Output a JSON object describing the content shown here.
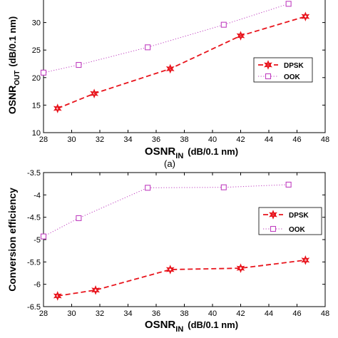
{
  "chart_data": [
    {
      "type": "line",
      "panel_caption": "(a)",
      "xlabel_main": "OSNR",
      "xlabel_sub": "IN",
      "xlabel_units": "(dB/0.1 nm)",
      "ylabel_main": "OSNR",
      "ylabel_sub": "OUT",
      "ylabel_units": "(dB/0.1 nm)",
      "xlim": [
        28,
        48
      ],
      "ylim": [
        10,
        35
      ],
      "xticks": [
        "28",
        "30",
        "32",
        "34",
        "36",
        "38",
        "40",
        "42",
        "44",
        "46",
        "48"
      ],
      "yticks": [
        "10",
        "15",
        "20",
        "25",
        "30"
      ],
      "legend_position": "right",
      "series": [
        {
          "name": "DPSK",
          "color": "#e8141c",
          "line": "dashed",
          "marker": "star",
          "x": [
            29.0,
            31.6,
            37.0,
            42.0,
            46.6
          ],
          "y": [
            14.4,
            17.1,
            21.6,
            27.6,
            31.1
          ]
        },
        {
          "name": "OOK",
          "color": "#c040c0",
          "line": "dotted",
          "marker": "square",
          "x": [
            28.0,
            30.5,
            35.4,
            40.8,
            45.4
          ],
          "y": [
            20.9,
            22.3,
            25.5,
            29.6,
            33.4
          ]
        }
      ]
    },
    {
      "type": "line",
      "xlabel_main": "OSNR",
      "xlabel_sub": "IN",
      "xlabel_units": "(dB/0.1 nm)",
      "ylabel": "Conversion efficiency",
      "xlim": [
        28,
        48
      ],
      "ylim": [
        -6.5,
        -3.5
      ],
      "xticks": [
        "28",
        "30",
        "32",
        "34",
        "36",
        "38",
        "40",
        "42",
        "44",
        "46",
        "48"
      ],
      "yticks": [
        "-3.5",
        "-4",
        "-4.5",
        "-5",
        "-5.5",
        "-6",
        "-6.5"
      ],
      "legend_position": "right",
      "series": [
        {
          "name": "DPSK",
          "color": "#e8141c",
          "line": "dashed",
          "marker": "star",
          "x": [
            29.0,
            31.7,
            37.0,
            42.0,
            46.6
          ],
          "y": [
            -6.26,
            -6.13,
            -5.67,
            -5.64,
            -5.46
          ]
        },
        {
          "name": "OOK",
          "color": "#c040c0",
          "line": "dotted",
          "marker": "square",
          "x": [
            28.0,
            30.5,
            35.4,
            40.8,
            45.4
          ],
          "y": [
            -4.93,
            -4.52,
            -3.84,
            -3.83,
            -3.77
          ]
        }
      ]
    }
  ]
}
